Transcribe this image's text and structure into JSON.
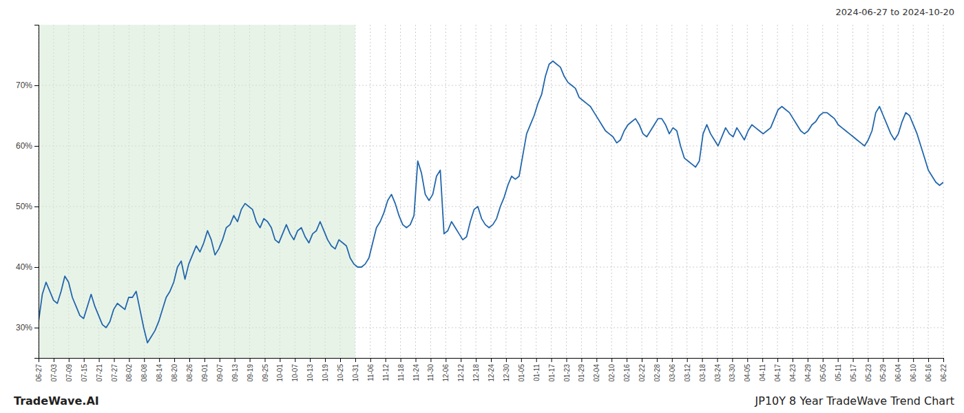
{
  "chart_data": {
    "type": "line",
    "title": "2024-06-27 to 2024-10-20",
    "annotations": [
      "TradeWave.AI",
      "JP10Y 8 Year TradeWave Trend Chart"
    ],
    "color": "#2166ac",
    "grid": true,
    "shade": {
      "x_start": 0,
      "x_end": 84.35,
      "color": "#d6ead6"
    },
    "xlim": [
      0,
      241
    ],
    "ylim": [
      25,
      80
    ],
    "yticks": [
      {
        "value": 30,
        "label": "30%"
      },
      {
        "value": 40,
        "label": "40%"
      },
      {
        "value": 50,
        "label": "50%"
      },
      {
        "value": 60,
        "label": "60%"
      },
      {
        "value": 70,
        "label": "70%"
      }
    ],
    "xticks": [
      {
        "value": 0,
        "label": "06-27"
      },
      {
        "value": 4.016666666666667,
        "label": "07-03"
      },
      {
        "value": 8.033333333333333,
        "label": "07-09"
      },
      {
        "value": 12.05,
        "label": "07-15"
      },
      {
        "value": 16.066666666666666,
        "label": "07-21"
      },
      {
        "value": 20.083333333333332,
        "label": "07-27"
      },
      {
        "value": 24.1,
        "label": "08-02"
      },
      {
        "value": 28.116666666666667,
        "label": "08-08"
      },
      {
        "value": 32.13333333333333,
        "label": "08-14"
      },
      {
        "value": 36.15,
        "label": "08-20"
      },
      {
        "value": 40.166666666666664,
        "label": "08-26"
      },
      {
        "value": 44.18333333333333,
        "label": "09-01"
      },
      {
        "value": 48.2,
        "label": "09-07"
      },
      {
        "value": 52.21666666666667,
        "label": "09-13"
      },
      {
        "value": 56.233333333333334,
        "label": "09-19"
      },
      {
        "value": 60.25,
        "label": "09-25"
      },
      {
        "value": 64.26666666666667,
        "label": "10-01"
      },
      {
        "value": 68.28333333333333,
        "label": "10-07"
      },
      {
        "value": 72.3,
        "label": "10-13"
      },
      {
        "value": 76.31666666666666,
        "label": "10-19"
      },
      {
        "value": 80.33333333333333,
        "label": "10-25"
      },
      {
        "value": 84.35,
        "label": "10-31"
      },
      {
        "value": 88.36666666666666,
        "label": "11-06"
      },
      {
        "value": 92.38333333333334,
        "label": "11-12"
      },
      {
        "value": 96.4,
        "label": "11-18"
      },
      {
        "value": 100.41666666666667,
        "label": "11-24"
      },
      {
        "value": 104.43333333333334,
        "label": "11-30"
      },
      {
        "value": 108.45,
        "label": "12-06"
      },
      {
        "value": 112.46666666666667,
        "label": "12-12"
      },
      {
        "value": 116.48333333333333,
        "label": "12-18"
      },
      {
        "value": 120.5,
        "label": "12-24"
      },
      {
        "value": 124.51666666666667,
        "label": "12-30"
      },
      {
        "value": 128.53333333333333,
        "label": "01-05"
      },
      {
        "value": 132.55,
        "label": "01-11"
      },
      {
        "value": 136.56666666666666,
        "label": "01-17"
      },
      {
        "value": 140.58333333333334,
        "label": "01-23"
      },
      {
        "value": 144.6,
        "label": "01-29"
      },
      {
        "value": 148.61666666666667,
        "label": "02-04"
      },
      {
        "value": 152.63333333333333,
        "label": "02-10"
      },
      {
        "value": 156.65,
        "label": "02-16"
      },
      {
        "value": 160.66666666666666,
        "label": "02-22"
      },
      {
        "value": 164.68333333333334,
        "label": "02-28"
      },
      {
        "value": 168.7,
        "label": "03-06"
      },
      {
        "value": 172.71666666666667,
        "label": "03-12"
      },
      {
        "value": 176.73333333333332,
        "label": "03-18"
      },
      {
        "value": 180.75,
        "label": "03-24"
      },
      {
        "value": 184.76666666666668,
        "label": "03-30"
      },
      {
        "value": 188.78333333333333,
        "label": "04-05"
      },
      {
        "value": 192.8,
        "label": "04-11"
      },
      {
        "value": 196.81666666666666,
        "label": "04-17"
      },
      {
        "value": 200.83333333333334,
        "label": "04-23"
      },
      {
        "value": 204.85,
        "label": "04-29"
      },
      {
        "value": 208.86666666666667,
        "label": "05-05"
      },
      {
        "value": 212.88333333333333,
        "label": "05-11"
      },
      {
        "value": 216.9,
        "label": "05-17"
      },
      {
        "value": 220.91666666666666,
        "label": "05-23"
      },
      {
        "value": 224.93333333333334,
        "label": "05-29"
      },
      {
        "value": 228.95,
        "label": "06-04"
      },
      {
        "value": 232.96666666666667,
        "label": "06-10"
      },
      {
        "value": 236.98333333333332,
        "label": "06-16"
      },
      {
        "value": 241,
        "label": "06-22"
      }
    ],
    "x": [
      0,
      1,
      2,
      3,
      4,
      5,
      6,
      7,
      8,
      9,
      10,
      11,
      12,
      13,
      14,
      15,
      16,
      17,
      18,
      19,
      20,
      21,
      22,
      23,
      24,
      25,
      26,
      27,
      28,
      29,
      30,
      31,
      32,
      33,
      34,
      35,
      36,
      37,
      38,
      39,
      40,
      41,
      42,
      43,
      44,
      45,
      46,
      47,
      48,
      49,
      50,
      51,
      52,
      53,
      54,
      55,
      56,
      57,
      58,
      59,
      60,
      61,
      62,
      63,
      64,
      65,
      66,
      67,
      68,
      69,
      70,
      71,
      72,
      73,
      74,
      75,
      76,
      77,
      78,
      79,
      80,
      81,
      82,
      83,
      84,
      85,
      86,
      87,
      88,
      89,
      90,
      91,
      92,
      93,
      94,
      95,
      96,
      97,
      98,
      99,
      100,
      101,
      102,
      103,
      104,
      105,
      106,
      107,
      108,
      109,
      110,
      111,
      112,
      113,
      114,
      115,
      116,
      117,
      118,
      119,
      120,
      121,
      122,
      123,
      124,
      125,
      126,
      127,
      128,
      129,
      130,
      131,
      132,
      133,
      134,
      135,
      136,
      137,
      138,
      139,
      140,
      141,
      142,
      143,
      144,
      145,
      146,
      147,
      148,
      149,
      150,
      151,
      152,
      153,
      154,
      155,
      156,
      157,
      158,
      159,
      160,
      161,
      162,
      163,
      164,
      165,
      166,
      167,
      168,
      169,
      170,
      171,
      172,
      173,
      174,
      175,
      176,
      177,
      178,
      179,
      180,
      181,
      182,
      183,
      184,
      185,
      186,
      187,
      188,
      189,
      190,
      191,
      192,
      193,
      194,
      195,
      196,
      197,
      198,
      199,
      200,
      201,
      202,
      203,
      204,
      205,
      206,
      207,
      208,
      209,
      210,
      211,
      212,
      213,
      214,
      215,
      216,
      217,
      218,
      219,
      220,
      221,
      222,
      223,
      224,
      225,
      226,
      227,
      228,
      229,
      230,
      231,
      232,
      233,
      234,
      235,
      236,
      237,
      238,
      239,
      240,
      241
    ],
    "values": [
      31.0,
      35.5,
      37.5,
      36.0,
      34.5,
      34.0,
      36.0,
      38.5,
      37.5,
      35.0,
      33.5,
      32.0,
      31.5,
      33.5,
      35.5,
      33.5,
      32.0,
      30.5,
      30.0,
      31.0,
      33.0,
      34.0,
      33.5,
      33.0,
      35.0,
      35.0,
      36.0,
      33.0,
      30.0,
      27.5,
      28.5,
      29.5,
      31.0,
      33.0,
      35.0,
      36.0,
      37.5,
      40.0,
      41.0,
      38.0,
      40.5,
      42.0,
      43.5,
      42.5,
      44.0,
      46.0,
      44.5,
      42.0,
      43.0,
      44.5,
      46.5,
      47.0,
      48.5,
      47.5,
      49.5,
      50.5,
      50.0,
      49.5,
      47.5,
      46.5,
      48.0,
      47.5,
      46.5,
      44.5,
      44.0,
      45.5,
      47.0,
      45.5,
      44.5,
      46.0,
      46.5,
      45.0,
      44.0,
      45.5,
      46.0,
      47.5,
      46.0,
      44.5,
      43.5,
      43.0,
      44.5,
      44.0,
      43.5,
      41.5,
      40.5,
      40.0,
      40.0,
      40.5,
      41.5,
      44.0,
      46.5,
      47.5,
      49.0,
      51.0,
      52.0,
      50.5,
      48.5,
      47.0,
      46.5,
      47.0,
      48.5,
      57.5,
      55.5,
      52.0,
      51.0,
      52.0,
      55.0,
      56.0,
      45.5,
      46.0,
      47.5,
      46.5,
      45.5,
      44.5,
      45.0,
      47.5,
      49.5,
      50.0,
      48.0,
      47.0,
      46.5,
      47.0,
      48.0,
      50.0,
      51.5,
      53.5,
      55.0,
      54.5,
      55.0,
      58.5,
      62.0,
      63.5,
      65.0,
      67.0,
      68.5,
      71.5,
      73.5,
      74.0,
      73.5,
      73.0,
      71.5,
      70.5,
      70.0,
      69.5,
      68.0,
      67.5,
      67.0,
      66.5,
      65.5,
      64.5,
      63.5,
      62.5,
      62.0,
      61.5,
      60.5,
      61.0,
      62.5,
      63.5,
      64.0,
      64.5,
      63.5,
      62.0,
      61.5,
      62.5,
      63.5,
      64.5,
      64.5,
      63.5,
      62.0,
      63.0,
      62.5,
      60.0,
      58.0,
      57.5,
      57.0,
      56.5,
      57.5,
      62.0,
      63.5,
      62.0,
      61.0,
      60.0,
      61.5,
      63.0,
      62.0,
      61.5,
      63.0,
      62.0,
      61.0,
      62.5,
      63.5,
      63.0,
      62.5,
      62.0,
      62.5,
      63.0,
      64.5,
      66.0,
      66.5,
      66.0,
      65.5,
      64.5,
      63.5,
      62.5,
      62.0,
      62.5,
      63.5,
      64.0,
      65.0,
      65.5,
      65.5,
      65.0,
      64.5,
      63.5,
      63.0,
      62.5,
      62.0,
      61.5,
      61.0,
      60.5,
      60.0,
      61.0,
      62.5,
      65.5,
      66.5,
      65.0,
      63.5,
      62.0,
      61.0,
      62.0,
      64.0,
      65.5,
      65.0,
      63.5,
      62.0,
      60.0,
      58.0,
      56.0,
      55.0,
      54.0,
      53.5,
      54.0
    ]
  }
}
